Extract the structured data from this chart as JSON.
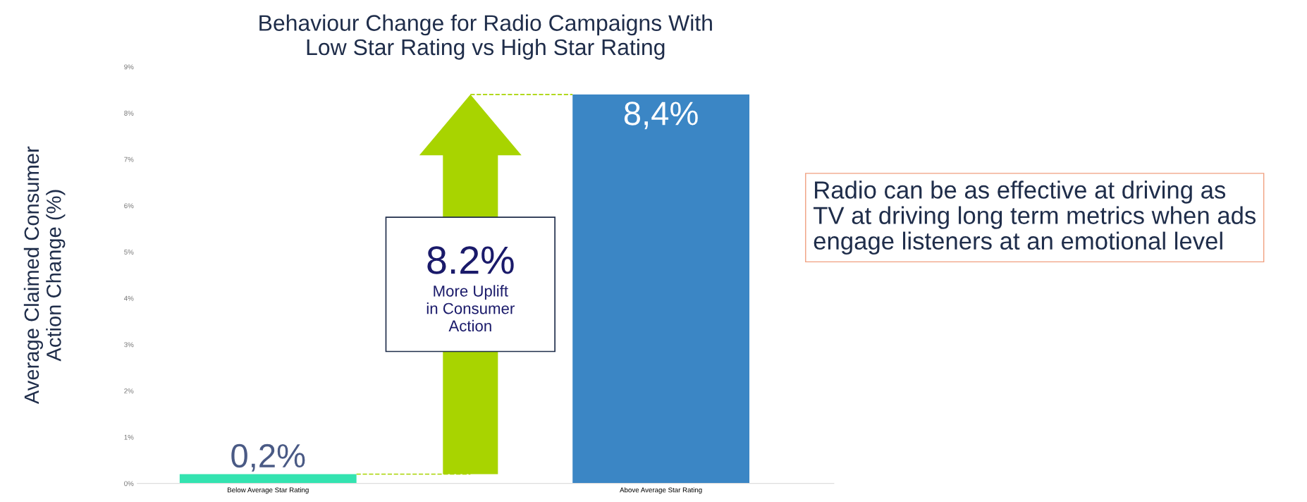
{
  "chart_data": {
    "type": "bar",
    "title": "Behaviour Change for Radio Campaigns With\nLow Star Rating vs High Star Rating",
    "ylabel": "Average Claimed Consumer\nAction Change (%)",
    "categories": [
      "Below Average Star Rating",
      "Above Average Star Rating"
    ],
    "values": [
      0.2,
      8.4
    ],
    "colors": [
      "#33e3b0",
      "#3b86c5"
    ],
    "value_labels": [
      "0,2%",
      "8,4%"
    ],
    "ylim": [
      0,
      9
    ],
    "yticks": [
      {
        "value": 0,
        "label": "0%"
      },
      {
        "value": 1,
        "label": "1%"
      },
      {
        "value": 2,
        "label": "2%"
      },
      {
        "value": 3,
        "label": "3%"
      },
      {
        "value": 4,
        "label": "4%"
      },
      {
        "value": 5,
        "label": "5%"
      },
      {
        "value": 6,
        "label": "6%"
      },
      {
        "value": 7,
        "label": "7%"
      },
      {
        "value": 8,
        "label": "8%"
      },
      {
        "value": 9,
        "label": "9%"
      }
    ],
    "grid": false,
    "annotations": [
      "8.2%",
      "More Uplift\nin Consumer\nAction",
      "Radio can be as effective at driving as\nTV at driving long term metrics when ads\nengage listeners at an emotional level"
    ]
  }
}
